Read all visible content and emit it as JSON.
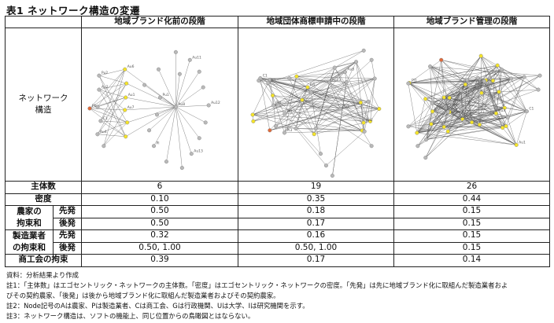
{
  "title": "表1 ネットワーク構造の変遷",
  "columns": [
    "地域ブランド化前の段階",
    "地域団体商標申請中の段階",
    "地域ブランド管理の段階"
  ],
  "network_label": [
    "ネットワーク",
    "構造"
  ],
  "rows": {
    "actors": {
      "label": "主体数",
      "values": [
        "6",
        "19",
        "26"
      ]
    },
    "density": {
      "label": "密度",
      "values": [
        "0.10",
        "0.35",
        "0.44"
      ]
    },
    "farmer_label_1": "農家の",
    "farmer_label_2": "拘束和",
    "farmer_early": {
      "sub": "先発",
      "values": [
        "0.50",
        "0.18",
        "0.15"
      ]
    },
    "farmer_late": {
      "sub": "後発",
      "values": [
        "0.50",
        "0.17",
        "0.15"
      ]
    },
    "maker_label_1": "製造業者",
    "maker_label_2": "の拘束和",
    "maker_early": {
      "sub": "先発",
      "values": [
        "0.32",
        "0.16",
        "0.15"
      ]
    },
    "maker_late": {
      "sub": "後発",
      "values": [
        "0.50, 1.00",
        "0.50, 1.00",
        "0.15"
      ]
    },
    "chamber": {
      "label": "商工会の拘束",
      "values": [
        "0.39",
        "0.17",
        "0.14"
      ]
    }
  },
  "notes": [
    "資料：分析結果より作成",
    "註1：「主体数」はエゴセントリック・ネットワークの主体数。「密度」はエゴセントリック・ネットワークの密度。「先発」は先に地域ブランド化に取組んだ製造業者およ",
    "びその契約農家、「後発」は後から地域ブランド化に取組んだ製造業者およびその契約農家。",
    "註2：Node記号のAは農家、Pは製造業者、Cは商工会、Gは行政機関、Uは大学、Iは研究機関を示す。",
    "註3：ネットワーク構造は、ソフトの機能上、同じ位置からの鳥瞰図とはならない。"
  ],
  "node_labels": {
    "g1": [
      "Au2",
      "Au4",
      "Au6",
      "Au7",
      "Au8",
      "Au11",
      "Au12",
      "Au13",
      "Pl",
      "Pu1",
      "Pu2",
      "C1",
      "Pb",
      "Au1"
    ],
    "g2": [
      "Pl1",
      "Au5",
      "Au13",
      "Pl3",
      "Au2",
      "Au8",
      "C1",
      "Pl2",
      "Pl4",
      "Pl5"
    ],
    "g3": [
      "Au1",
      "Au3",
      "Pl2",
      "Pl1",
      "A1",
      "C1"
    ]
  },
  "colors": {
    "farmer": "#f5e42a",
    "chamber": "#e06a3a",
    "other": "#b9b9b9",
    "edge": "#555555"
  }
}
